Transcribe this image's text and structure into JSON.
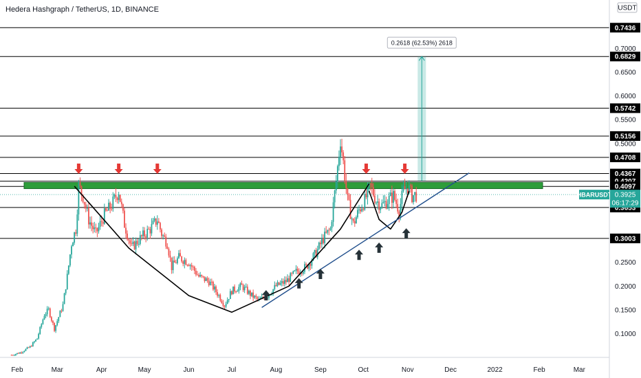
{
  "header": {
    "title": "Hedera Hashgraph / TetherUS, 1D, BINANCE",
    "currency": "USDT"
  },
  "chart_data": {
    "type": "candlestick",
    "symbol": "HBARUSDT",
    "last_price": "0.3925",
    "countdown": "06:17:29",
    "ylim": [
      0.05,
      0.77
    ],
    "y_ticks": [
      "0.7000",
      "0.6500",
      "0.6000",
      "0.5500",
      "0.5000",
      "0.2500",
      "0.2000",
      "0.1500",
      "0.1000"
    ],
    "x_ticks": [
      "Feb",
      "Mar",
      "Apr",
      "May",
      "Jun",
      "Jul",
      "Aug",
      "Sep",
      "Oct",
      "Nov",
      "Dec",
      "2022",
      "Feb",
      "Mar"
    ],
    "levels": [
      "0.7436",
      "0.6829",
      "0.5742",
      "0.5156",
      "0.4708",
      "0.4367",
      "0.4207",
      "0.4097",
      "0.3653",
      "0.3003"
    ],
    "measure_label": "0.2618 (62.53%) 2618",
    "resistance_zone": [
      0.405,
      0.418
    ],
    "price_path": [
      [
        "2021-01-28",
        0.055
      ],
      [
        "2021-02-03",
        0.06
      ],
      [
        "2021-02-10",
        0.072
      ],
      [
        "2021-02-15",
        0.09
      ],
      [
        "2021-02-20",
        0.14
      ],
      [
        "2021-02-23",
        0.15
      ],
      [
        "2021-02-27",
        0.11
      ],
      [
        "2021-03-05",
        0.16
      ],
      [
        "2021-03-08",
        0.22
      ],
      [
        "2021-03-11",
        0.29
      ],
      [
        "2021-03-14",
        0.32
      ],
      [
        "2021-03-16",
        0.41
      ],
      [
        "2021-03-19",
        0.39
      ],
      [
        "2021-03-23",
        0.34
      ],
      [
        "2021-03-28",
        0.31
      ],
      [
        "2021-04-03",
        0.35
      ],
      [
        "2021-04-08",
        0.37
      ],
      [
        "2021-04-13",
        0.4
      ],
      [
        "2021-04-17",
        0.33
      ],
      [
        "2021-04-22",
        0.28
      ],
      [
        "2021-04-28",
        0.3
      ],
      [
        "2021-05-05",
        0.32
      ],
      [
        "2021-05-10",
        0.34
      ],
      [
        "2021-05-13",
        0.31
      ],
      [
        "2021-05-17",
        0.29
      ],
      [
        "2021-05-20",
        0.24
      ],
      [
        "2021-05-25",
        0.26
      ],
      [
        "2021-06-01",
        0.25
      ],
      [
        "2021-06-08",
        0.22
      ],
      [
        "2021-06-15",
        0.21
      ],
      [
        "2021-06-22",
        0.18
      ],
      [
        "2021-06-26",
        0.16
      ],
      [
        "2021-07-01",
        0.19
      ],
      [
        "2021-07-08",
        0.2
      ],
      [
        "2021-07-15",
        0.18
      ],
      [
        "2021-07-20",
        0.17
      ],
      [
        "2021-07-26",
        0.18
      ],
      [
        "2021-08-01",
        0.2
      ],
      [
        "2021-08-08",
        0.21
      ],
      [
        "2021-08-15",
        0.23
      ],
      [
        "2021-08-22",
        0.24
      ],
      [
        "2021-08-29",
        0.27
      ],
      [
        "2021-09-03",
        0.3
      ],
      [
        "2021-09-08",
        0.32
      ],
      [
        "2021-09-12",
        0.42
      ],
      [
        "2021-09-15",
        0.51
      ],
      [
        "2021-09-17",
        0.46
      ],
      [
        "2021-09-20",
        0.38
      ],
      [
        "2021-09-24",
        0.33
      ],
      [
        "2021-09-28",
        0.36
      ],
      [
        "2021-10-02",
        0.38
      ],
      [
        "2021-10-06",
        0.41
      ],
      [
        "2021-10-10",
        0.38
      ],
      [
        "2021-10-14",
        0.37
      ],
      [
        "2021-10-18",
        0.38
      ],
      [
        "2021-10-22",
        0.39
      ],
      [
        "2021-10-26",
        0.36
      ],
      [
        "2021-10-29",
        0.4
      ],
      [
        "2021-11-01",
        0.41
      ],
      [
        "2021-11-04",
        0.39
      ],
      [
        "2021-11-07",
        0.3925
      ]
    ],
    "down_arrow_dates": [
      "2021-03-16",
      "2021-04-13",
      "2021-05-10",
      "2021-10-03",
      "2021-10-30"
    ],
    "up_arrow_dates": [
      "2021-07-25",
      "2021-08-17",
      "2021-09-01",
      "2021-09-28",
      "2021-10-12",
      "2021-10-31"
    ],
    "colors": {
      "up": "#26a69a",
      "down": "#ef5350",
      "zone": "#2e9d3a",
      "trendline": "#1f4e8c",
      "measure": "#26a69a",
      "arrow_down": "#e53935",
      "arrow_up": "#263238",
      "symbol_badge": "#26a69a"
    }
  }
}
